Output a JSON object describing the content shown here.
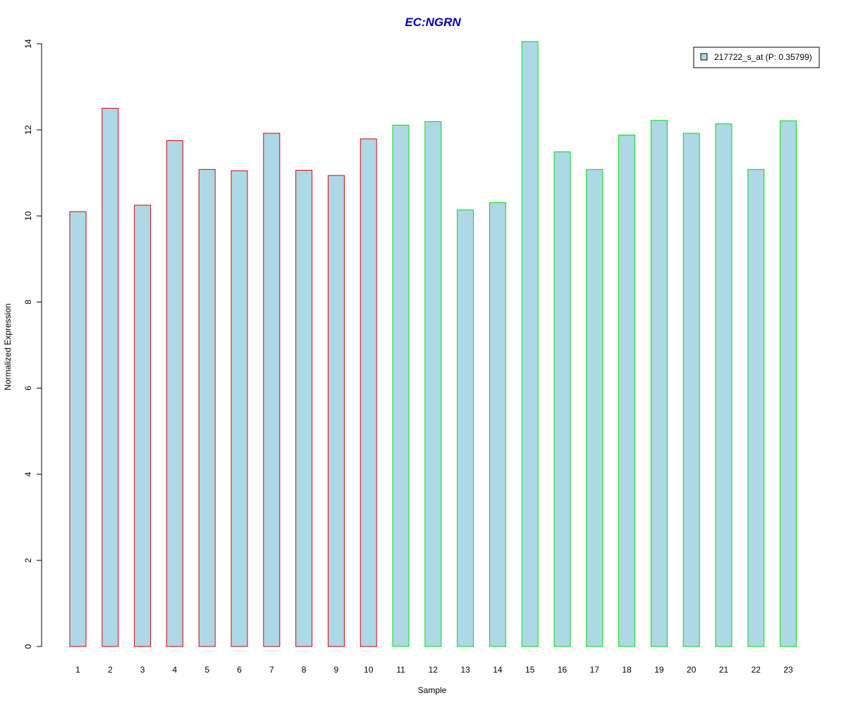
{
  "chart_data": {
    "type": "bar",
    "title": "EC:NGRN",
    "xlabel": "Sample",
    "ylabel": "Normalized Expression",
    "ylim": [
      0,
      14
    ],
    "yticks": [
      "0",
      "2",
      "4",
      "6",
      "8",
      "10",
      "12",
      "14"
    ],
    "categories": [
      "1",
      "2",
      "3",
      "4",
      "5",
      "6",
      "7",
      "8",
      "9",
      "10",
      "11",
      "12",
      "13",
      "14",
      "15",
      "16",
      "17",
      "18",
      "19",
      "20",
      "21",
      "22",
      "23"
    ],
    "series": [
      {
        "name": "217722_s_at (P: 0.35799)",
        "values": [
          10.1,
          12.5,
          10.25,
          11.75,
          11.08,
          11.05,
          11.92,
          11.06,
          10.94,
          11.79,
          12.11,
          12.19,
          10.14,
          10.31,
          14.05,
          11.49,
          11.08,
          11.88,
          12.22,
          11.92,
          12.14,
          11.08,
          12.21
        ]
      }
    ],
    "groups": [
      {
        "samples": [
          "1",
          "2",
          "3",
          "4",
          "5",
          "6",
          "7",
          "8",
          "9",
          "10"
        ],
        "border_color": "#e00000"
      },
      {
        "samples": [
          "11",
          "12",
          "13",
          "14",
          "15",
          "16",
          "17",
          "18",
          "19",
          "20",
          "21",
          "22",
          "23"
        ],
        "border_color": "#00e000"
      }
    ],
    "fill_color": "#add8e6",
    "title_color": "#0000cc",
    "legend_position": "top-right",
    "grid": false
  }
}
